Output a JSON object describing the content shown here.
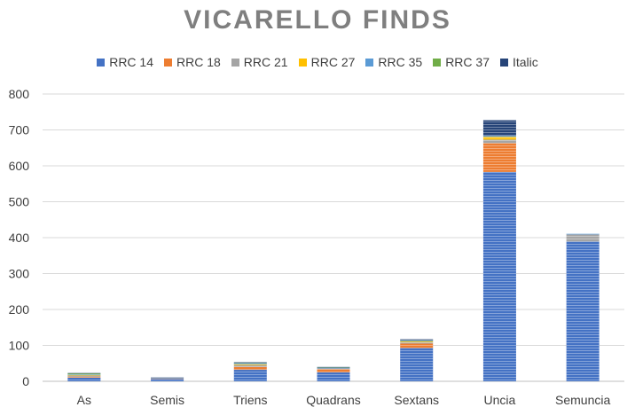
{
  "chart_data": {
    "type": "bar",
    "stacked": true,
    "title": "VICARELLO FINDS",
    "categories": [
      "As",
      "Semis",
      "Triens",
      "Quadrans",
      "Sextans",
      "Uncia",
      "Semuncia"
    ],
    "ylim": [
      0,
      800
    ],
    "yticks": [
      0,
      100,
      200,
      300,
      400,
      500,
      600,
      700,
      800
    ],
    "grid": true,
    "legend_position": "top",
    "series": [
      {
        "name": "RRC 14",
        "color": "#4472C4",
        "values": [
          10,
          7,
          32,
          25,
          93,
          583,
          389
        ]
      },
      {
        "name": "RRC 18",
        "color": "#ED7D31",
        "values": [
          3,
          1,
          8,
          9,
          12,
          80,
          0
        ]
      },
      {
        "name": "RRC 21",
        "color": "#A5A5A5",
        "values": [
          3,
          1,
          5,
          2,
          4,
          10,
          20
        ]
      },
      {
        "name": "RRC 27",
        "color": "#FFC000",
        "values": [
          1,
          0,
          2,
          0,
          2,
          8,
          0
        ]
      },
      {
        "name": "RRC 35",
        "color": "#5B9BD5",
        "values": [
          2,
          1,
          3,
          2,
          2,
          3,
          2
        ]
      },
      {
        "name": "RRC 37",
        "color": "#70AD47",
        "values": [
          3,
          0,
          1,
          1,
          1,
          0,
          0
        ]
      },
      {
        "name": "Italic",
        "color": "#264478",
        "values": [
          1,
          1,
          2,
          1,
          3,
          43,
          0
        ]
      }
    ]
  }
}
